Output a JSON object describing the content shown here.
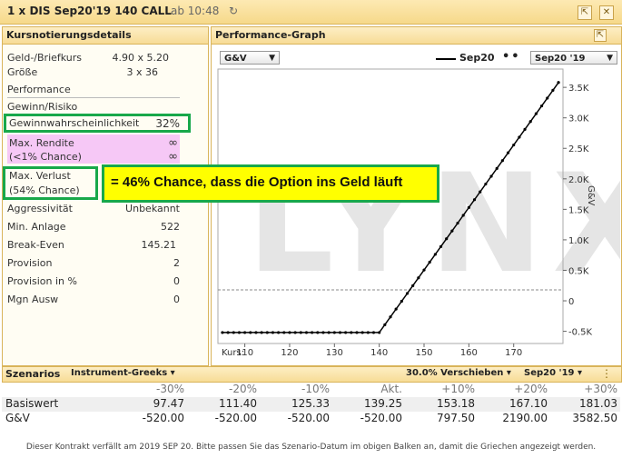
{
  "window": {
    "title": "1 x DIS Sep20'19 140 CALL",
    "time": "ab 10:48"
  },
  "left_panel": {
    "header": "Kursnotierungsdetails",
    "rows": [
      {
        "label": "Geld-/Briefkurs",
        "value": "4.90 x 5.20"
      },
      {
        "label": "Größe",
        "value": "3 x 36"
      },
      {
        "label": "Performance",
        "value": ""
      },
      {
        "label": "Gewinn/Risiko",
        "value": ""
      },
      {
        "label": "Gewinnwahrscheinlichkeit",
        "value": "32%"
      },
      {
        "label": "Max. Rendite",
        "value": "∞"
      },
      {
        "label": "(<1% Chance)",
        "value": "∞"
      },
      {
        "label": "Max. Verlust",
        "value": ""
      },
      {
        "label": "(54% Chance)",
        "value": ""
      },
      {
        "label": "Aggressivität",
        "value": "Unbekannt"
      },
      {
        "label": "Min. Anlage",
        "value": "522"
      },
      {
        "label": "Break-Even",
        "value": "145.21"
      },
      {
        "label": "Provision",
        "value": "2"
      },
      {
        "label": "Provision in %",
        "value": "0"
      },
      {
        "label": "Mgn Ausw",
        "value": "0"
      }
    ]
  },
  "annotation": {
    "text": "= 46% Chance, dass die Option ins Geld läuft"
  },
  "graph_panel": {
    "header": "Performance-Graph",
    "metric_select": "G&V",
    "legend_series": "Sep20",
    "expiry_select": "Sep20 '19",
    "watermark": "LYNX",
    "x_prefix": "Kurs:",
    "y_axis_label": "G&V",
    "x_ticks": [
      "110",
      "120",
      "130",
      "140",
      "150",
      "160",
      "170"
    ],
    "y_ticks": [
      "3.5K",
      "3.0K",
      "2.5K",
      "2.0K",
      "1.5K",
      "1.0K",
      "0.5K",
      "0",
      "-0.5K"
    ]
  },
  "scenarios": {
    "label": "Szenarios",
    "mode_select": "Instrument-Greeks",
    "shift_select": "30.0% Verschieben",
    "expiry_select": "Sep20 '19",
    "headers": [
      "-30%",
      "-20%",
      "-10%",
      "Akt.",
      "+10%",
      "+20%",
      "+30%"
    ],
    "rows": [
      {
        "label": "Basiswert",
        "values": [
          "97.47",
          "111.40",
          "125.33",
          "139.25",
          "153.18",
          "167.10",
          "181.03"
        ]
      },
      {
        "label": "G&V",
        "values": [
          "-520.00",
          "-520.00",
          "-520.00",
          "-520.00",
          "797.50",
          "2190.00",
          "3582.50"
        ]
      }
    ],
    "note": "Dieser Kontrakt verfällt am 2019 SEP 20. Bitte passen Sie das Szenario-Datum im obigen Balken an, damit die Griechen angezeigt werden."
  },
  "chart_data": {
    "type": "line",
    "series": [
      {
        "name": "Sep20",
        "x": [
          105,
          140,
          180
        ],
        "y": [
          -520,
          -520,
          3580
        ]
      }
    ],
    "xlim": [
      104,
      181
    ],
    "ylim": [
      -700,
      3800
    ],
    "colors": {
      "series": "#000000",
      "pink": "#f6c8f6",
      "green": "#18a84a",
      "yellow": "#ffff00"
    }
  }
}
